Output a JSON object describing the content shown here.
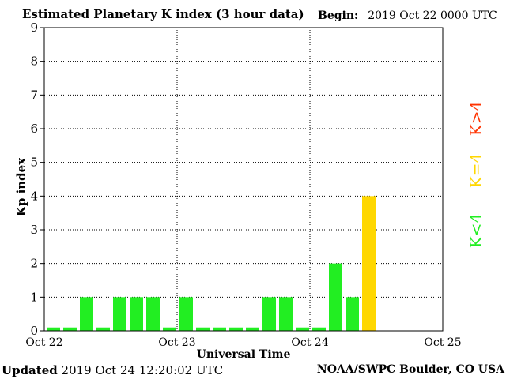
{
  "header": {
    "title": "Estimated Planetary K index (3 hour data)",
    "begin_label": "Begin:",
    "begin_value": "2019 Oct 22 0000 UTC"
  },
  "footer": {
    "updated_label": "Updated",
    "updated_value": "2019 Oct 24 12:20:02 UTC",
    "source": "NOAA/SWPC Boulder, CO USA"
  },
  "legend": {
    "high": {
      "label": "K>4",
      "color": "#ff3300"
    },
    "equal": {
      "label": "K=4",
      "color": "#ffd700"
    },
    "low": {
      "label": "K<4",
      "color": "#22ee22"
    }
  },
  "chart_data": {
    "type": "bar",
    "title": "Estimated Planetary K index (3 hour data)",
    "xlabel": "Universal Time",
    "ylabel": "Kp index",
    "ylim": [
      0,
      9
    ],
    "yticks": [
      0,
      1,
      2,
      3,
      4,
      5,
      6,
      7,
      8,
      9
    ],
    "xticks": [
      "Oct 22",
      "Oct 23",
      "Oct 24",
      "Oct 25"
    ],
    "interval_hours": 3,
    "grid": true,
    "values": [
      0,
      0,
      1,
      0,
      1,
      1,
      1,
      0,
      1,
      0,
      0,
      0,
      0,
      1,
      1,
      0,
      0,
      2,
      1,
      4
    ],
    "colors": {
      "low": "#22ee22",
      "equal": "#ffd700",
      "high": "#ff3300"
    }
  }
}
